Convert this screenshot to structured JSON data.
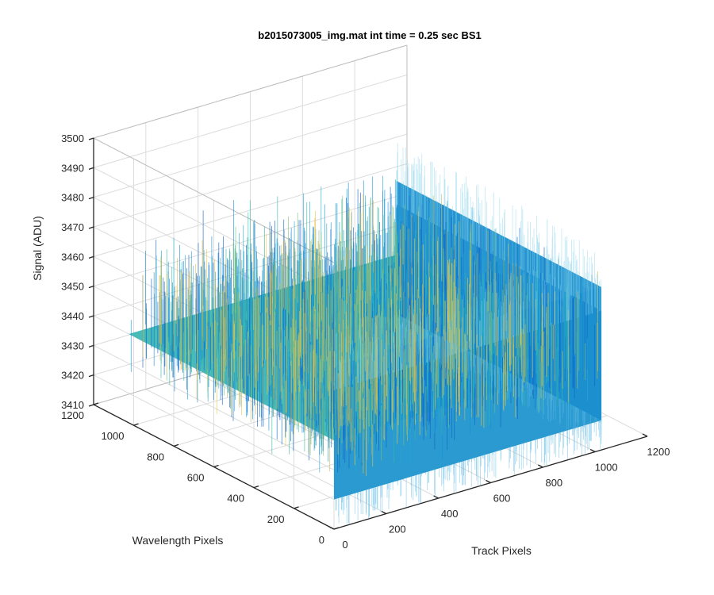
{
  "chart_data": {
    "type": "surface3d",
    "title": "b2015073005_img.mat int time = 0.25 sec   BS1",
    "xlabel": "Track Pixels",
    "ylabel": "Wavelength Pixels",
    "zlabel": "Signal (ADU)",
    "xlim": [
      0,
      1200
    ],
    "ylim": [
      0,
      1200
    ],
    "zlim": [
      3410,
      3500
    ],
    "x_ticks": [
      0,
      200,
      400,
      600,
      800,
      1000,
      1200
    ],
    "y_ticks": [
      0,
      200,
      400,
      600,
      800,
      1000,
      1200
    ],
    "z_ticks": [
      3410,
      3420,
      3430,
      3440,
      3450,
      3460,
      3470,
      3480,
      3490,
      3500
    ],
    "data_extent": {
      "x": [
        0,
        1024
      ],
      "y": [
        0,
        1024
      ]
    },
    "signal": {
      "mean": 3440,
      "typical_range": [
        3420,
        3465
      ],
      "peak_range": [
        3410,
        3488
      ]
    },
    "colormap": "parula",
    "colors": [
      "#0d63c8",
      "#1590d4",
      "#23aad0",
      "#37b8a8",
      "#7cbf7a",
      "#c4bb5a",
      "#e9c74a"
    ],
    "grid": true,
    "view": "3d-azimuth-37.5-elevation-30"
  }
}
